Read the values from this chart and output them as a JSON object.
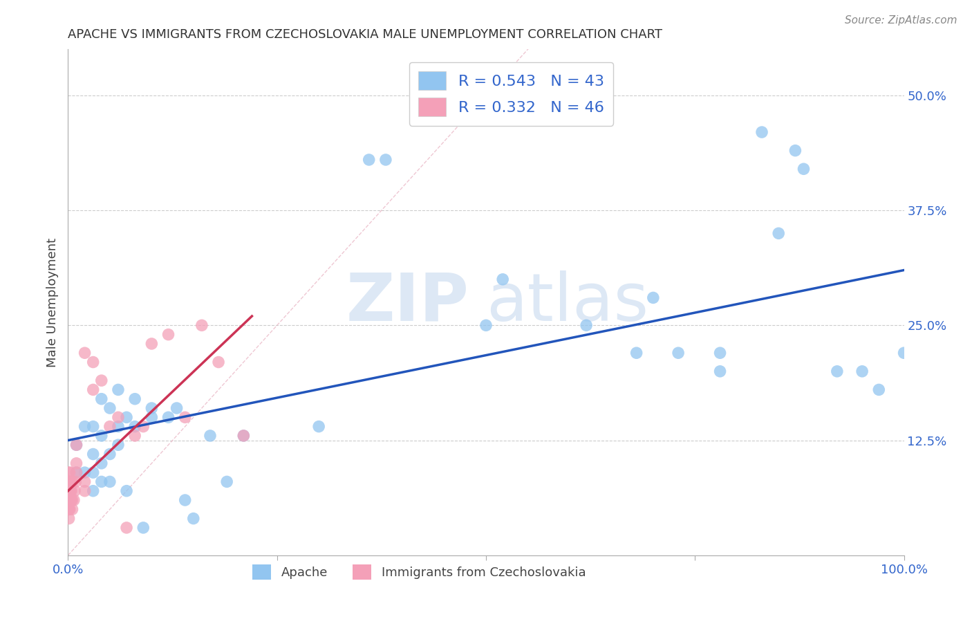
{
  "title": "APACHE VS IMMIGRANTS FROM CZECHOSLOVAKIA MALE UNEMPLOYMENT CORRELATION CHART",
  "source": "Source: ZipAtlas.com",
  "ylabel": "Male Unemployment",
  "xlim": [
    0.0,
    1.0
  ],
  "ylim": [
    0.0,
    0.55
  ],
  "xticks": [
    0.0,
    0.25,
    0.5,
    0.75,
    1.0
  ],
  "xticklabels": [
    "0.0%",
    "",
    "",
    "",
    "100.0%"
  ],
  "yticks": [
    0.0,
    0.125,
    0.25,
    0.375,
    0.5
  ],
  "yticklabels": [
    "",
    "12.5%",
    "25.0%",
    "37.5%",
    "50.0%"
  ],
  "background_color": "#ffffff",
  "watermark_zip": "ZIP",
  "watermark_atlas": "atlas",
  "apache_color": "#92c5f0",
  "czecho_color": "#f4a0b8",
  "apache_line_color": "#2255bb",
  "czecho_line_color": "#cc3355",
  "diag_color": "#e8b0c0",
  "grid_color": "#cccccc",
  "legend_R1": "R = 0.543",
  "legend_N1": "N = 43",
  "legend_R2": "R = 0.332",
  "legend_N2": "N = 46",
  "apache_x": [
    0.01,
    0.01,
    0.02,
    0.02,
    0.03,
    0.03,
    0.03,
    0.03,
    0.04,
    0.04,
    0.04,
    0.04,
    0.05,
    0.05,
    0.05,
    0.06,
    0.06,
    0.06,
    0.07,
    0.07,
    0.08,
    0.08,
    0.09,
    0.1,
    0.1,
    0.12,
    0.13,
    0.14,
    0.15,
    0.17,
    0.19,
    0.21,
    0.3,
    0.5,
    0.52,
    0.62,
    0.68,
    0.7,
    0.73,
    0.78,
    0.78,
    0.83,
    0.87
  ],
  "apache_y": [
    0.09,
    0.12,
    0.09,
    0.14,
    0.07,
    0.09,
    0.11,
    0.14,
    0.08,
    0.1,
    0.13,
    0.17,
    0.08,
    0.11,
    0.16,
    0.12,
    0.14,
    0.18,
    0.07,
    0.15,
    0.14,
    0.17,
    0.03,
    0.15,
    0.16,
    0.15,
    0.16,
    0.06,
    0.04,
    0.13,
    0.08,
    0.13,
    0.14,
    0.25,
    0.3,
    0.25,
    0.22,
    0.28,
    0.22,
    0.22,
    0.2,
    0.46,
    0.44
  ],
  "apache_x2": [
    0.36,
    0.38,
    0.85,
    0.88,
    0.92,
    0.95,
    0.97,
    1.0
  ],
  "apache_y2": [
    0.43,
    0.43,
    0.35,
    0.42,
    0.2,
    0.2,
    0.18,
    0.22
  ],
  "czecho_x": [
    0.001,
    0.001,
    0.001,
    0.001,
    0.001,
    0.001,
    0.001,
    0.001,
    0.001,
    0.002,
    0.002,
    0.002,
    0.002,
    0.002,
    0.003,
    0.003,
    0.003,
    0.004,
    0.004,
    0.005,
    0.005,
    0.005,
    0.007,
    0.008,
    0.009,
    0.01,
    0.01,
    0.01,
    0.02,
    0.02,
    0.02,
    0.03,
    0.03,
    0.04,
    0.05,
    0.06,
    0.07,
    0.08,
    0.09,
    0.1,
    0.12,
    0.14,
    0.16,
    0.18,
    0.21,
    0.56
  ],
  "czecho_y": [
    0.04,
    0.05,
    0.05,
    0.06,
    0.06,
    0.07,
    0.07,
    0.08,
    0.09,
    0.05,
    0.06,
    0.07,
    0.08,
    0.09,
    0.06,
    0.07,
    0.08,
    0.06,
    0.07,
    0.05,
    0.06,
    0.08,
    0.06,
    0.07,
    0.08,
    0.09,
    0.1,
    0.12,
    0.07,
    0.08,
    0.22,
    0.18,
    0.21,
    0.19,
    0.14,
    0.15,
    0.03,
    0.13,
    0.14,
    0.23,
    0.24,
    0.15,
    0.25,
    0.21,
    0.13,
    0.5
  ],
  "apache_line_x0": 0.0,
  "apache_line_y0": 0.125,
  "apache_line_x1": 1.0,
  "apache_line_y1": 0.31,
  "czecho_line_x0": 0.0,
  "czecho_line_y0": 0.07,
  "czecho_line_x1": 0.22,
  "czecho_line_y1": 0.26
}
